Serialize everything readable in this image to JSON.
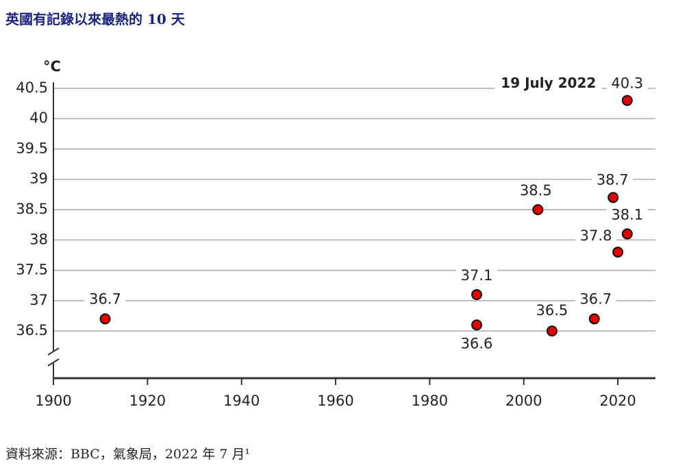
{
  "chart_data": {
    "type": "scatter",
    "title": "英國有記錄以來最熱的 10 天",
    "y_unit": "°C",
    "annotation": "19 July 2022",
    "source": "資料來源：BBC，氣象局，2022 年 7 月¹",
    "x": [
      1911,
      1990,
      1990,
      2003,
      2006,
      2015,
      2019,
      2020,
      2022,
      2022
    ],
    "values": [
      36.7,
      37.1,
      36.6,
      38.5,
      36.5,
      36.7,
      38.7,
      37.8,
      38.1,
      40.3
    ],
    "color": "#e00000",
    "xlim": [
      1900,
      2028
    ],
    "xticks": [
      1900,
      1920,
      1940,
      1960,
      1980,
      2000,
      2020
    ],
    "ylim": [
      35.7,
      40.6
    ],
    "yticks": [
      36.5,
      37,
      37.5,
      38,
      38.5,
      39,
      39.5,
      40,
      40.5
    ],
    "grid": true
  }
}
